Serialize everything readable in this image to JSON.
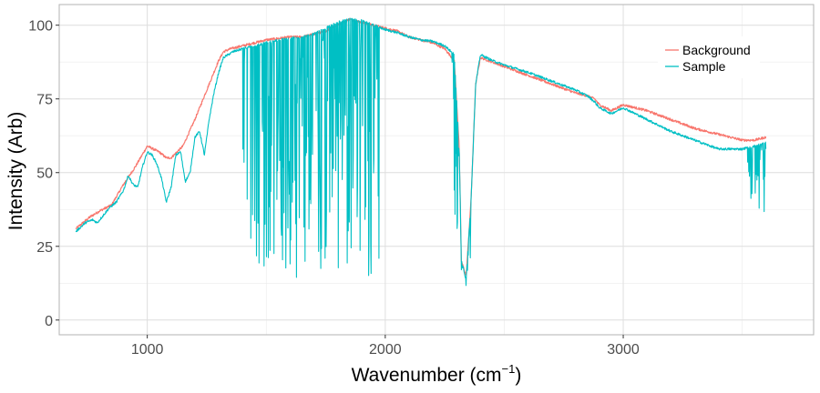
{
  "chart_data": {
    "type": "line",
    "title": "",
    "xlabel": "Wavenumber (cm",
    "xlabel_sup": "−1",
    "xlabel_close": ")",
    "ylabel": "Intensity (Arb)",
    "xlim": [
      630,
      3800
    ],
    "ylim": [
      -5,
      107
    ],
    "xticks": [
      1000,
      2000,
      3000
    ],
    "xtick_labels": [
      "1000",
      "2000",
      "3000"
    ],
    "yticks": [
      0,
      25,
      50,
      75,
      100
    ],
    "ytick_labels": [
      "0",
      "25",
      "50",
      "75",
      "100"
    ],
    "grid": true,
    "legend_position": "top-right",
    "series": [
      {
        "name": "Background",
        "color": "#F8766D",
        "x": [
          700,
          760,
          800,
          850,
          900,
          950,
          1000,
          1050,
          1080,
          1100,
          1150,
          1200,
          1250,
          1300,
          1320,
          1350,
          1400,
          1450,
          1500,
          1550,
          1600,
          1650,
          1700,
          1750,
          1800,
          1850,
          1900,
          1950,
          2000,
          2050,
          2100,
          2150,
          2200,
          2250,
          2290,
          2310,
          2320,
          2340,
          2360,
          2380,
          2400,
          2450,
          2500,
          2600,
          2700,
          2800,
          2850,
          2880,
          2900,
          2950,
          3000,
          3050,
          3100,
          3200,
          3300,
          3400,
          3500,
          3550,
          3600
        ],
        "y": [
          31,
          35,
          37,
          39,
          46,
          52,
          59,
          57,
          55,
          55,
          59,
          68,
          78,
          88,
          91,
          92,
          93,
          94,
          95,
          95.5,
          96,
          96,
          97,
          98,
          100,
          102,
          101,
          100,
          99,
          98,
          96,
          95,
          94,
          92,
          88,
          60,
          20,
          15,
          40,
          80,
          89,
          87.5,
          86,
          83,
          80,
          77,
          76,
          75,
          73,
          71,
          73,
          72,
          71,
          68,
          65,
          63,
          61,
          61,
          62
        ]
      },
      {
        "name": "Sample",
        "color": "#00BFC4",
        "x": [
          700,
          740,
          770,
          790,
          810,
          840,
          870,
          900,
          920,
          940,
          960,
          980,
          1000,
          1020,
          1040,
          1060,
          1080,
          1100,
          1120,
          1140,
          1160,
          1180,
          1200,
          1220,
          1240,
          1260,
          1280,
          1300,
          1320,
          1340,
          1360,
          1380,
          1400,
          1450,
          1500,
          1550,
          1600,
          1650,
          1700,
          1750,
          1800,
          1850,
          1900,
          1950,
          2000,
          2050,
          2100,
          2150,
          2200,
          2250,
          2290,
          2310,
          2320,
          2340,
          2360,
          2380,
          2400,
          2450,
          2500,
          2600,
          2700,
          2800,
          2850,
          2880,
          2900,
          2950,
          3000,
          3050,
          3100,
          3200,
          3300,
          3400,
          3500,
          3550,
          3600
        ],
        "y": [
          30,
          33,
          34,
          33,
          35,
          38,
          40,
          44,
          49,
          46,
          45,
          52,
          57,
          56,
          53,
          48,
          40,
          45,
          56,
          57,
          47,
          50,
          62,
          64,
          56,
          68,
          77,
          84,
          89,
          90,
          91,
          91.5,
          92,
          93,
          94,
          95,
          95.5,
          96,
          97,
          99,
          101,
          102,
          101.5,
          100,
          98.5,
          97.5,
          96,
          95,
          94.5,
          93,
          90,
          60,
          20,
          14,
          40,
          80,
          90,
          88,
          86.5,
          84,
          81,
          78,
          76,
          74,
          72,
          70,
          72,
          70,
          68,
          64,
          61,
          58,
          58,
          59,
          60
        ]
      }
    ],
    "noise_bands": [
      {
        "series": "Sample",
        "x_range": [
          1400,
          1980
        ],
        "min": [
          12,
          20
        ],
        "description": ""
      },
      {
        "series": "Sample",
        "x_range": [
          2280,
          2360
        ],
        "min": [
          9,
          15
        ],
        "description": ""
      },
      {
        "series": "Sample",
        "x_range": [
          3520,
          3600
        ],
        "min": [
          35,
          50
        ],
        "description": ""
      }
    ]
  },
  "legend": {
    "items": [
      {
        "label": "Background",
        "color": "#F8766D"
      },
      {
        "label": "Sample",
        "color": "#00BFC4"
      }
    ]
  }
}
